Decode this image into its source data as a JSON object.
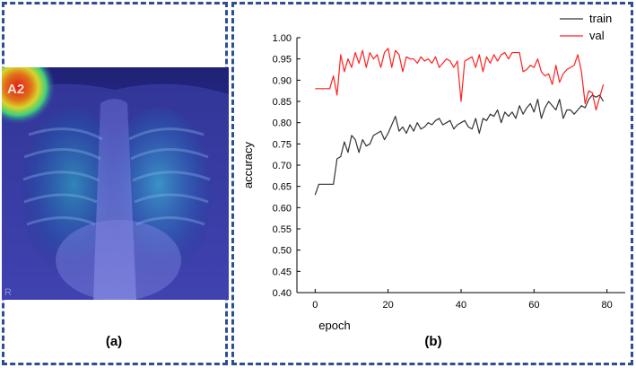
{
  "captions": {
    "a": "(a)",
    "b": "(b)"
  },
  "image": {
    "description": "chest x-ray heatmap overlay",
    "marker_label": "A2",
    "corner_label": "R",
    "colors": {
      "heat_hot": "#d62020",
      "heat_overlay": "#3a3ecf"
    }
  },
  "chart_data": {
    "type": "line",
    "title": "",
    "xlabel": "epoch",
    "ylabel": "accuracy",
    "xlim": [
      -5,
      85
    ],
    "ylim": [
      0.4,
      1.0
    ],
    "xticks": [
      0,
      20,
      40,
      60,
      80
    ],
    "yticks": [
      0.4,
      0.45,
      0.5,
      0.55,
      0.6,
      0.65,
      0.7,
      0.75,
      0.8,
      0.85,
      0.9,
      0.95,
      1.0
    ],
    "ytick_labels": [
      "0.40",
      "0.45",
      "0.50",
      "0.55",
      "0.60",
      "0.65",
      "0.70",
      "0.75",
      "0.80",
      "0.85",
      "0.90",
      "0.95",
      "1.00"
    ],
    "legend_position": "top-right",
    "grid": false,
    "x": [
      0,
      1,
      2,
      3,
      4,
      5,
      6,
      7,
      8,
      9,
      10,
      11,
      12,
      13,
      14,
      15,
      16,
      17,
      18,
      19,
      20,
      21,
      22,
      23,
      24,
      25,
      26,
      27,
      28,
      29,
      30,
      31,
      32,
      33,
      34,
      35,
      36,
      37,
      38,
      39,
      40,
      41,
      42,
      43,
      44,
      45,
      46,
      47,
      48,
      49,
      50,
      51,
      52,
      53,
      54,
      55,
      56,
      57,
      58,
      59,
      60,
      61,
      62,
      63,
      64,
      65,
      66,
      67,
      68,
      69,
      70,
      71,
      72,
      73,
      74,
      75,
      76,
      77,
      78,
      79
    ],
    "series": [
      {
        "name": "train",
        "color": "#333333",
        "values": [
          0.63,
          0.655,
          0.655,
          0.655,
          0.655,
          0.655,
          0.715,
          0.72,
          0.755,
          0.73,
          0.77,
          0.76,
          0.73,
          0.76,
          0.745,
          0.75,
          0.77,
          0.775,
          0.78,
          0.76,
          0.775,
          0.795,
          0.815,
          0.78,
          0.79,
          0.775,
          0.795,
          0.78,
          0.8,
          0.785,
          0.79,
          0.8,
          0.795,
          0.805,
          0.81,
          0.795,
          0.8,
          0.805,
          0.785,
          0.795,
          0.8,
          0.805,
          0.79,
          0.785,
          0.81,
          0.775,
          0.81,
          0.805,
          0.82,
          0.815,
          0.83,
          0.8,
          0.825,
          0.815,
          0.825,
          0.81,
          0.84,
          0.82,
          0.835,
          0.845,
          0.825,
          0.855,
          0.81,
          0.835,
          0.85,
          0.84,
          0.83,
          0.855,
          0.81,
          0.83,
          0.83,
          0.82,
          0.83,
          0.84,
          0.835,
          0.855,
          0.865,
          0.86,
          0.865,
          0.85
        ]
      },
      {
        "name": "val",
        "color": "#ff2020",
        "values": [
          0.88,
          0.88,
          0.88,
          0.88,
          0.88,
          0.91,
          0.865,
          0.96,
          0.92,
          0.95,
          0.93,
          0.965,
          0.94,
          0.97,
          0.93,
          0.965,
          0.95,
          0.96,
          0.93,
          0.965,
          0.975,
          0.93,
          0.97,
          0.96,
          0.92,
          0.955,
          0.95,
          0.95,
          0.94,
          0.955,
          0.945,
          0.95,
          0.94,
          0.955,
          0.93,
          0.94,
          0.95,
          0.945,
          0.93,
          0.945,
          0.85,
          0.945,
          0.95,
          0.955,
          0.93,
          0.96,
          0.92,
          0.955,
          0.94,
          0.96,
          0.945,
          0.96,
          0.965,
          0.95,
          0.965,
          0.965,
          0.965,
          0.92,
          0.925,
          0.935,
          0.93,
          0.95,
          0.92,
          0.91,
          0.915,
          0.89,
          0.935,
          0.895,
          0.915,
          0.925,
          0.93,
          0.935,
          0.96,
          0.92,
          0.845,
          0.875,
          0.87,
          0.83,
          0.86,
          0.89
        ]
      }
    ]
  }
}
